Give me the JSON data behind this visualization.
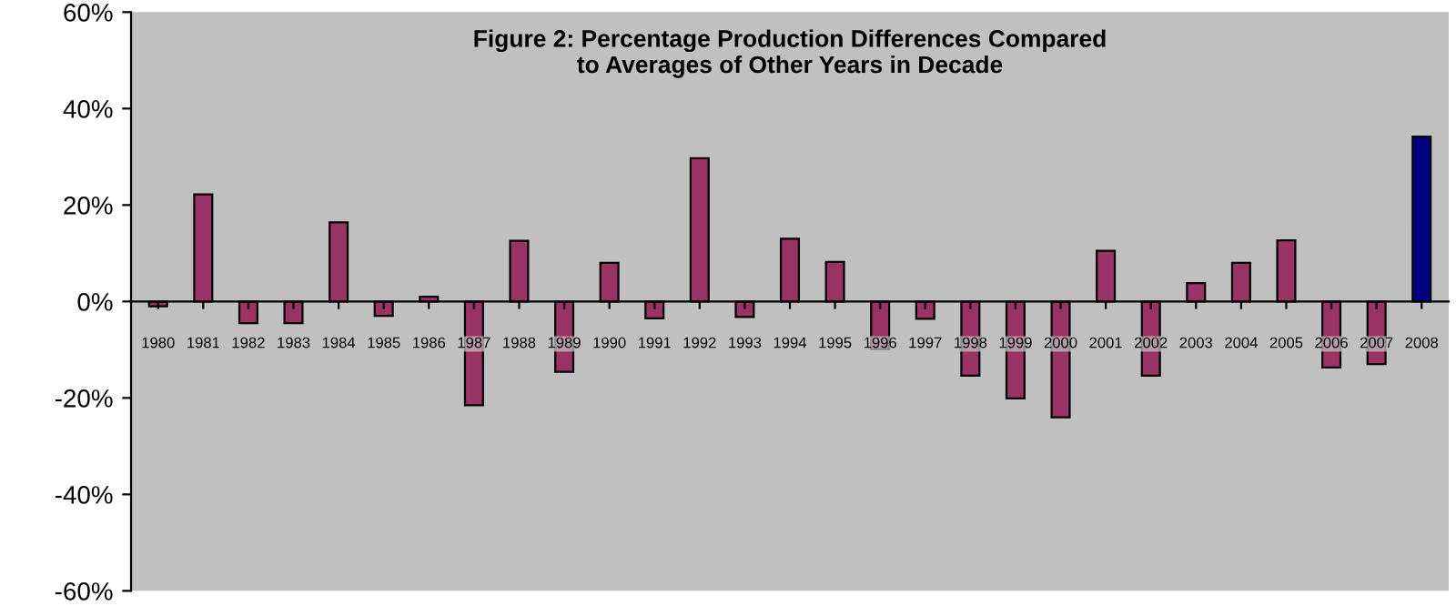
{
  "chart_data": {
    "type": "bar",
    "title": "Figure 2: Percentage Production Differences Compared\nto Averages of Other Years in Decade",
    "categories": [
      "1980",
      "1981",
      "1982",
      "1983",
      "1984",
      "1985",
      "1986",
      "1987",
      "1988",
      "1989",
      "1990",
      "1991",
      "1992",
      "1993",
      "1994",
      "1995",
      "1996",
      "1997",
      "1998",
      "1999",
      "2000",
      "2001",
      "2002",
      "2003",
      "2004",
      "2005",
      "2006",
      "2007",
      "2008"
    ],
    "values": [
      -1,
      22.2,
      -4.5,
      -4.5,
      16.4,
      -3,
      1,
      -21.5,
      12.6,
      -14.6,
      8,
      -3.5,
      29.7,
      -3.2,
      13,
      8.2,
      -9.9,
      -3.6,
      -15.4,
      -20.1,
      -24,
      10.5,
      -15.4,
      3.8,
      8,
      12.7,
      -13.7,
      -13,
      34.2
    ],
    "colors": [
      "#993366",
      "#993366",
      "#993366",
      "#993366",
      "#993366",
      "#993366",
      "#993366",
      "#993366",
      "#993366",
      "#993366",
      "#993366",
      "#993366",
      "#993366",
      "#993366",
      "#993366",
      "#993366",
      "#993366",
      "#993366",
      "#993366",
      "#993366",
      "#993366",
      "#993366",
      "#993366",
      "#993366",
      "#993366",
      "#993366",
      "#993366",
      "#993366",
      "#000080"
    ],
    "ylim": [
      -60,
      60
    ],
    "yticks": [
      {
        "value": -60,
        "label": "-60%"
      },
      {
        "value": -40,
        "label": "-40%"
      },
      {
        "value": -20,
        "label": "-20%"
      },
      {
        "value": 0,
        "label": "0%"
      },
      {
        "value": 20,
        "label": "20%"
      },
      {
        "value": 40,
        "label": "40%"
      },
      {
        "value": 60,
        "label": "60%"
      }
    ],
    "grid": false
  }
}
